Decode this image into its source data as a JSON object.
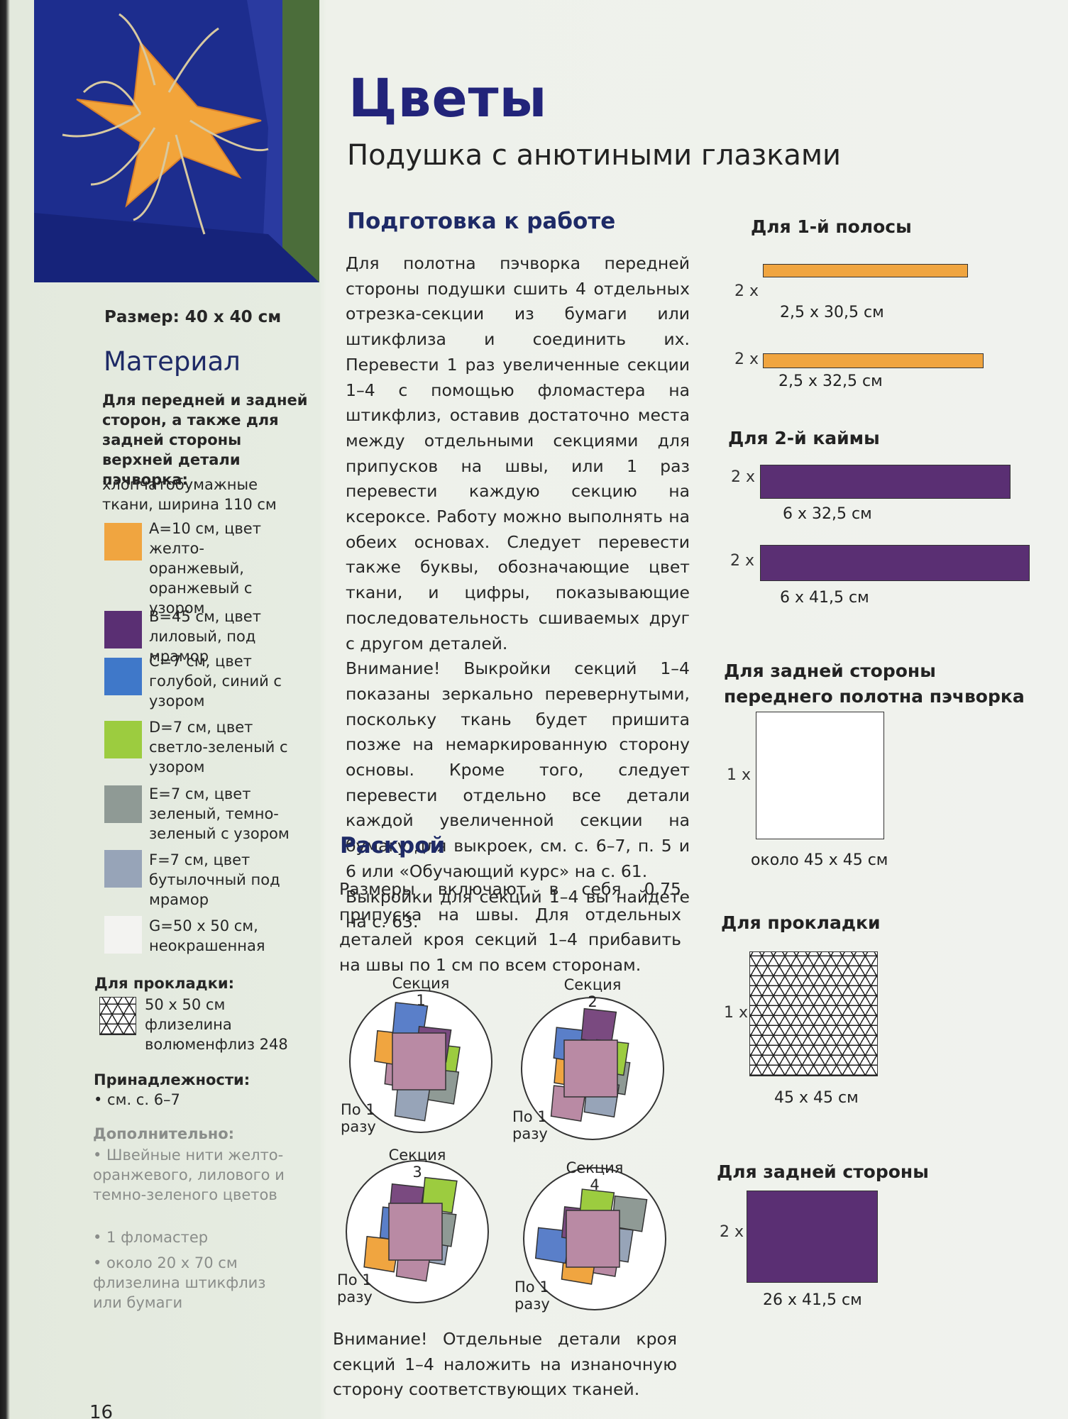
{
  "header": {
    "title": "Цветы",
    "subtitle": "Подушка с анютиными глазками"
  },
  "sidebar": {
    "size": "Размер: 40 x 40 см",
    "material_heading": "Материал",
    "material_intro": "Для передней и задней сторон, а также для задней стороны верхней детали пэчворка:",
    "fabric_description": "хлопчатобумажные ткани, ширина 110 см",
    "fabrics": [
      {
        "text": "A=10 см, цвет желто-оранжевый, оранжевый с узором",
        "color": "#f0a540"
      },
      {
        "text": "B=45 см, цвет лиловый, под мрамор",
        "color": "#5a2f73"
      },
      {
        "text": "C=7 см, цвет голубой, синий с узором",
        "color": "#3f78c9"
      },
      {
        "text": "D=7 см, цвет светло-зеленый с узором",
        "color": "#9ccc3f"
      },
      {
        "text": "E=7 см, цвет зеленый, темно-зеленый с узором",
        "color": "#8f9a95"
      },
      {
        "text": "F=7 см, цвет бутылочный под мрамор",
        "color": "#97a4b8"
      },
      {
        "text": "G=50 x 50 см, неокрашенная",
        "color": "#f3f3f1"
      }
    ],
    "interlining": {
      "heading": "Для прокладки:",
      "text": "50 x 50 см флизелина волюменфлиз 248"
    },
    "accessories": {
      "heading": "Принадлежности:",
      "items": [
        "• см. с. 6–7"
      ]
    },
    "extra": {
      "heading": "Дополнительно:",
      "items": [
        "• Швейные нити желто-оранжевого, лилового и темно-зеленого цветов",
        "• 1 фломастер",
        "• около 20 x 70 см флизелина штикфлиз или бумаги"
      ]
    }
  },
  "main": {
    "prep": {
      "heading": "Подготовка к работе",
      "paragraphs": [
        "Для полотна пэчворка передней стороны подушки сшить 4 отдельных отрезка-секции из бумаги или штикфлиза и соединить их. Перевести 1 раз увеличенные секции 1–4 с помощью фломастера на штикфлиз, оставив достаточно места между отдельными секциями для припусков на швы, или 1 раз перевести каждую секцию на ксероксе. Работу можно выполнять на обеих основах. Следует перевести также буквы, обозначающие цвет ткани, и цифры, показывающие последовательность сшиваемых друг с другом деталей.",
        "Внимание! Выкройки секций 1–4 показаны зеркально перевернутыми, поскольку ткань будет пришита позже на немаркированную сторону основы. Кроме того, следует перевести отдельно все детали каждой увеличенной секции на бумагу для выкроек, см. с. 6–7, п. 5 и 6 или «Обучающий курс» на с. 61.",
        "Выкройки для секций 1–4 вы найдете на с. 63."
      ]
    },
    "cut": {
      "heading": "Раскрой",
      "text": "Размеры включают в себя 0,75 припуска на швы. Для отдельных деталей кроя секций 1–4 прибавить на швы по 1 см по всем сторонам."
    },
    "sections": [
      {
        "label": "Секция",
        "number": "1",
        "note": "По 1 разу"
      },
      {
        "label": "Секция",
        "number": "2",
        "note": "По 1 разу"
      },
      {
        "label": "Секция",
        "number": "3",
        "note": "По 1 разу"
      },
      {
        "label": "Секция",
        "number": "4",
        "note": "По 1 разу"
      }
    ],
    "warning": "Внимание! Отдельные детали кроя секций 1–4 наложить на изнаночную сторону соответствующих тканей."
  },
  "pieces": [
    {
      "heading": "Для 1-й полосы",
      "items": [
        {
          "count": "2 x",
          "dims": "2,5 x 30,5 см",
          "color": "#f0a540"
        },
        {
          "count": "2 x",
          "dims": "2,5 x 32,5 см",
          "color": "#f0a540"
        }
      ]
    },
    {
      "heading": "Для 2-й каймы",
      "items": [
        {
          "count": "2 x",
          "dims": "6 x 32,5 см",
          "color": "#5a2f73"
        },
        {
          "count": "2 x",
          "dims": "6 x 41,5 см",
          "color": "#5a2f73"
        }
      ]
    },
    {
      "heading": "Для задней стороны переднего полотна пэчворка",
      "items": [
        {
          "count": "1 x",
          "dims": "около 45 x 45 см",
          "color": "#ffffff"
        }
      ]
    },
    {
      "heading": "Для прокладки",
      "items": [
        {
          "count": "1 x",
          "dims": "45 x 45 см"
        }
      ]
    },
    {
      "heading": "Для задней стороны",
      "items": [
        {
          "count": "2 x",
          "dims": "26 x 41,5 см",
          "color": "#5a2f73"
        }
      ]
    }
  ],
  "page_number": "16"
}
